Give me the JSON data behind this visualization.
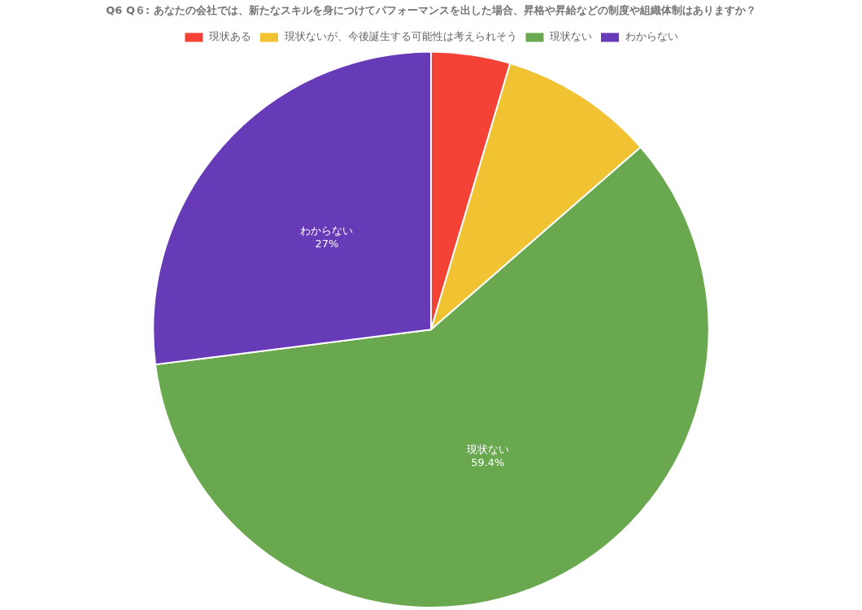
{
  "chart_data": {
    "type": "pie",
    "title": "Q6 Q６: あなたの会社では、新たなスキルを身につけてパフォーマンスを出した場合、昇格や昇給などの制度や組織体制はありますか？",
    "categories": [
      "現状ある",
      "現状ないが、今後誕生する可能性は考えられそう",
      "現状ない",
      "わからない"
    ],
    "values": [
      4.6,
      9.0,
      59.4,
      27
    ],
    "colors": [
      "#f44336",
      "#f1c232",
      "#6aa84f",
      "#673ab7"
    ],
    "value_labels": [
      null,
      null,
      "59.4%",
      "27%"
    ],
    "legend": "top"
  }
}
